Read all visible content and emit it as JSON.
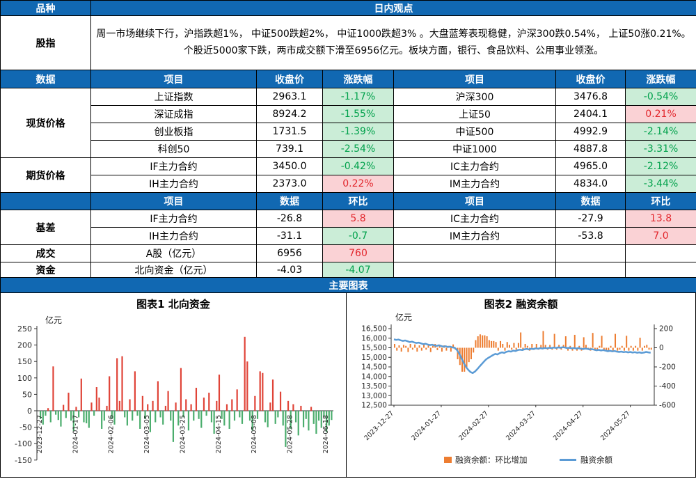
{
  "colors": {
    "header_blue": "#1168B2",
    "up_bg": "#FAD2D5",
    "up_text": "#E2262C",
    "down_bg": "#CBEDD7",
    "down_text": "#00A14B"
  },
  "header": {
    "col1": "品种",
    "col2": "日内观点"
  },
  "commentary": {
    "label": "股指",
    "text": "周一市场继续下行，沪指跌超1%， 中证500跌超2%， 中证1000跌超3% 。大盘蓝筹表现稳健，沪深300跌0.54%， 上证50涨0.21%。个股近5000家下跌，两市成交额下滑至6956亿元。板块方面，银行、食品饮料、公用事业领涨。"
  },
  "price_header": {
    "label": "数据",
    "cols": [
      "项目",
      "收盘价",
      "涨跌幅",
      "项目",
      "收盘价",
      "涨跌幅"
    ]
  },
  "spot": {
    "label": "现货价格",
    "rows": [
      {
        "l_name": "上证指数",
        "l_close": "2963.1",
        "l_chg": "-1.17%",
        "l_dir": "down",
        "r_name": "沪深300",
        "r_close": "3476.8",
        "r_chg": "-0.54%",
        "r_dir": "down"
      },
      {
        "l_name": "深证成指",
        "l_close": "8924.2",
        "l_chg": "-1.55%",
        "l_dir": "down",
        "r_name": "上证50",
        "r_close": "2404.1",
        "r_chg": "0.21%",
        "r_dir": "up"
      },
      {
        "l_name": "创业板指",
        "l_close": "1731.5",
        "l_chg": "-1.39%",
        "l_dir": "down",
        "r_name": "中证500",
        "r_close": "4992.9",
        "r_chg": "-2.14%",
        "r_dir": "down"
      },
      {
        "l_name": "科创50",
        "l_close": "739.1",
        "l_chg": "-2.54%",
        "l_dir": "down",
        "r_name": "中证1000",
        "r_close": "4887.8",
        "r_chg": "-3.31%",
        "r_dir": "down"
      }
    ]
  },
  "futures": {
    "label": "期货价格",
    "rows": [
      {
        "l_name": "IF主力合约",
        "l_close": "3450.0",
        "l_chg": "-0.42%",
        "l_dir": "down",
        "r_name": "IC主力合约",
        "r_close": "4965.0",
        "r_chg": "-2.12%",
        "r_dir": "down"
      },
      {
        "l_name": "IH主力合约",
        "l_close": "2373.0",
        "l_chg": "0.22%",
        "l_dir": "up",
        "r_name": "IM主力合约",
        "r_close": "4834.0",
        "r_chg": "-3.44%",
        "r_dir": "down"
      }
    ]
  },
  "basis_header": {
    "cols": [
      "项目",
      "数据",
      "环比",
      "项目",
      "数据",
      "环比"
    ]
  },
  "basis": {
    "label": "基差",
    "rows": [
      {
        "l_name": "IF主力合约",
        "l_val": "-26.8",
        "l_chg": "5.8",
        "l_dir": "up",
        "r_name": "IC主力合约",
        "r_val": "-27.9",
        "r_chg": "13.8",
        "r_dir": "up"
      },
      {
        "l_name": "IH主力合约",
        "l_val": "-31.1",
        "l_chg": "-0.7",
        "l_dir": "down",
        "r_name": "IM主力合约",
        "r_val": "-53.8",
        "r_chg": "7.0",
        "r_dir": "up"
      }
    ]
  },
  "volume": {
    "label": "成交",
    "name": "A股（亿元）",
    "val": "6956",
    "chg": "760",
    "dir": "up"
  },
  "funds": {
    "label": "资金",
    "name": "北向资金（亿元）",
    "val": "-4.03",
    "chg": "-4.07",
    "dir": "down"
  },
  "charts_header": "主要图表",
  "chart_data": [
    {
      "type": "bar",
      "title": "图表1 北向资金",
      "unit": "亿元",
      "ylim": [
        -150,
        250
      ],
      "ytick_step": 50,
      "pos_color": "#E04438",
      "neg_color": "#4BAD6D",
      "x_tick_indices": [
        0,
        14,
        28,
        42,
        56,
        70,
        84,
        98,
        112
      ],
      "x_tick_labels": [
        "2023-12-27",
        "2024-01-17",
        "2024-02-06",
        "2024-03-05",
        "2024-03-25",
        "2024-04-15",
        "2024-05-08",
        "2024-05-28",
        "2024-06-18"
      ],
      "values": [
        -25,
        -42,
        -15,
        8,
        -35,
        135,
        -12,
        -28,
        -48,
        18,
        -22,
        55,
        -30,
        -62,
        12,
        -20,
        98,
        -35,
        -38,
        -52,
        25,
        -15,
        72,
        40,
        -55,
        -30,
        15,
        105,
        -25,
        -42,
        160,
        30,
        166,
        -20,
        -45,
        35,
        -30,
        120,
        -15,
        -55,
        45,
        -25,
        20,
        -65,
        30,
        -35,
        90,
        -20,
        -42,
        15,
        60,
        -30,
        -95,
        25,
        -45,
        130,
        -20,
        35,
        -60,
        20,
        -30,
        70,
        -25,
        -52,
        40,
        -15,
        55,
        -35,
        -70,
        30,
        110,
        -25,
        -45,
        20,
        -55,
        35,
        -30,
        65,
        -20,
        -40,
        225,
        150,
        -30,
        -60,
        45,
        -25,
        120,
        115,
        -35,
        -50,
        25,
        95,
        -40,
        -20,
        58,
        -45,
        -110,
        30,
        -55,
        20,
        -35,
        -75,
        15,
        -50,
        -25,
        -60,
        12,
        -40,
        -70,
        -30,
        -52,
        -18,
        -65,
        -45,
        -28
      ]
    },
    {
      "type": "combo",
      "title": "图表2 融资余额",
      "unit": "亿元",
      "left_ylim": [
        12500,
        16500
      ],
      "left_step": 500,
      "right_ylim": [
        -600,
        200
      ],
      "right_step": 200,
      "x_tick_indices": [
        0,
        21,
        42,
        63,
        84,
        105
      ],
      "x_tick_labels": [
        "2023-12-27",
        "2024-01-27",
        "2024-02-27",
        "2024-03-27",
        "2024-04-27",
        "2024-05-27"
      ],
      "line": {
        "name": "融资余额",
        "color": "#5B9BD5",
        "values": [
          15940,
          15910,
          15930,
          15890,
          15860,
          15880,
          15840,
          15800,
          15820,
          15780,
          15750,
          15770,
          15730,
          15690,
          15710,
          15670,
          15640,
          15660,
          15620,
          15600,
          15630,
          15590,
          15560,
          15580,
          15540,
          15560,
          15520,
          15500,
          15380,
          15200,
          14950,
          14700,
          14500,
          14350,
          14230,
          14180,
          14260,
          14380,
          14520,
          14650,
          14780,
          14900,
          14980,
          15050,
          15120,
          15180,
          15150,
          15220,
          15260,
          15230,
          15290,
          15320,
          15300,
          15350,
          15330,
          15380,
          15400,
          15380,
          15420,
          15440,
          15410,
          15450,
          15430,
          15470,
          15450,
          15480,
          15460,
          15490,
          15470,
          15500,
          15480,
          15510,
          15490,
          15520,
          15500,
          15530,
          15510,
          15480,
          15500,
          15470,
          15490,
          15460,
          15480,
          15450,
          15430,
          15460,
          15440,
          15410,
          15430,
          15400,
          15370,
          15390,
          15360,
          15380,
          15350,
          15320,
          15340,
          15310,
          15330,
          15300,
          15280,
          15300,
          15270,
          15290,
          15260,
          15280,
          15250,
          15270,
          15240,
          15260,
          15230,
          15250,
          15280,
          15260,
          15240
        ]
      },
      "bars": {
        "name": "融资余额：环比增加",
        "color": "#ED7D31",
        "values": [
          40,
          -30,
          25,
          -40,
          30,
          20,
          -45,
          40,
          -20,
          35,
          -40,
          25,
          -30,
          45,
          -20,
          30,
          -45,
          20,
          40,
          -25,
          30,
          -40,
          25,
          -30,
          20,
          -40,
          35,
          -20,
          -120,
          -180,
          -250,
          -250,
          -200,
          -150,
          -120,
          -50,
          80,
          120,
          140,
          130,
          130,
          120,
          80,
          70,
          70,
          60,
          -30,
          70,
          40,
          -30,
          60,
          30,
          -20,
          50,
          -20,
          50,
          160,
          -20,
          40,
          20,
          -30,
          40,
          -20,
          40,
          -20,
          30,
          175,
          30,
          -20,
          30,
          -20,
          145,
          -20,
          30,
          -20,
          30,
          120,
          -30,
          20,
          -30,
          135,
          -30,
          20,
          -30,
          110,
          30,
          -20,
          -30,
          155,
          -30,
          -30,
          20,
          125,
          -30,
          -30,
          -30,
          20,
          -30,
          145,
          -30,
          -20,
          20,
          -30,
          125,
          -30,
          20,
          -30,
          20,
          -30,
          105,
          -30,
          20,
          30,
          -20,
          -20
        ]
      },
      "legend": [
        {
          "label": "融资余额：环比增加",
          "color": "#ED7D31",
          "type": "bar"
        },
        {
          "label": "融资余额",
          "color": "#5B9BD5",
          "type": "line"
        }
      ]
    }
  ]
}
